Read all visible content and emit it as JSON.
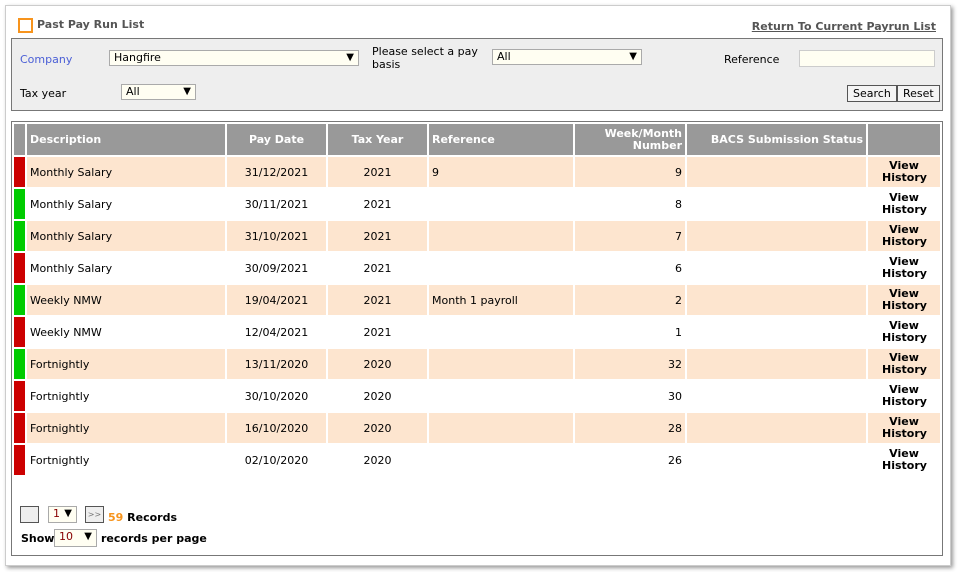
{
  "header": {
    "title": "Past Pay Run List",
    "return_link": "Return To Current Payrun List"
  },
  "filters": {
    "company_label": "Company",
    "company_value": "Hangfire",
    "pay_basis_label": "Please select a pay basis",
    "pay_basis_value": "All",
    "reference_label": "Reference",
    "reference_value": "",
    "tax_year_label": "Tax year",
    "tax_year_value": "All",
    "search": "Search",
    "reset": "Reset"
  },
  "colors": {
    "red": "#cc0000",
    "green": "#00cc00",
    "accent": "#f7941d"
  },
  "table": {
    "columns": [
      "Description",
      "Pay Date",
      "Tax Year",
      "Reference",
      "Week/Month Number",
      "BACS Submission Status",
      ""
    ],
    "rows": [
      {
        "status": "red",
        "description": "Monthly Salary",
        "pay_date": "31/12/2021",
        "tax_year": "2021",
        "reference": "9",
        "number": "9",
        "bacs": "",
        "action": "View History"
      },
      {
        "status": "green",
        "description": "Monthly Salary",
        "pay_date": "30/11/2021",
        "tax_year": "2021",
        "reference": "",
        "number": "8",
        "bacs": "",
        "action": "View History"
      },
      {
        "status": "green",
        "description": "Monthly Salary",
        "pay_date": "31/10/2021",
        "tax_year": "2021",
        "reference": "",
        "number": "7",
        "bacs": "",
        "action": "View History"
      },
      {
        "status": "red",
        "description": "Monthly Salary",
        "pay_date": "30/09/2021",
        "tax_year": "2021",
        "reference": "",
        "number": "6",
        "bacs": "",
        "action": "View History"
      },
      {
        "status": "green",
        "description": "Weekly NMW",
        "pay_date": "19/04/2021",
        "tax_year": "2021",
        "reference": "Month 1 payroll",
        "number": "2",
        "bacs": "",
        "action": "View History"
      },
      {
        "status": "red",
        "description": "Weekly NMW",
        "pay_date": "12/04/2021",
        "tax_year": "2021",
        "reference": "",
        "number": "1",
        "bacs": "",
        "action": "View History"
      },
      {
        "status": "green",
        "description": "Fortnightly",
        "pay_date": "13/11/2020",
        "tax_year": "2020",
        "reference": "",
        "number": "32",
        "bacs": "",
        "action": "View History"
      },
      {
        "status": "red",
        "description": "Fortnightly",
        "pay_date": "30/10/2020",
        "tax_year": "2020",
        "reference": "",
        "number": "30",
        "bacs": "",
        "action": "View History"
      },
      {
        "status": "red",
        "description": "Fortnightly",
        "pay_date": "16/10/2020",
        "tax_year": "2020",
        "reference": "",
        "number": "28",
        "bacs": "",
        "action": "View History"
      },
      {
        "status": "red",
        "description": "Fortnightly",
        "pay_date": "02/10/2020",
        "tax_year": "2020",
        "reference": "",
        "number": "26",
        "bacs": "",
        "action": "View History"
      }
    ]
  },
  "pager": {
    "page": "1",
    "next": ">>",
    "count": "59",
    "records_label": "Records",
    "show_label": "Show",
    "per_page": "10",
    "per_page_label": "records per page"
  }
}
